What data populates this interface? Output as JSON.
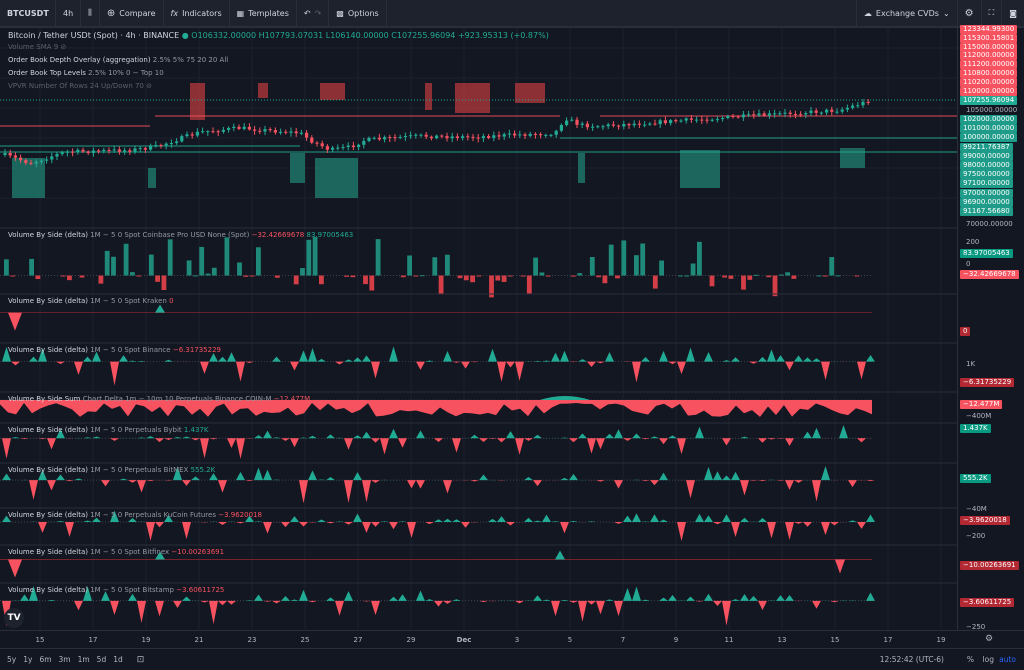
{
  "toolbar": {
    "symbol": "BTCUSDT",
    "interval": "4h",
    "compare": "Compare",
    "indicators": "Indicators",
    "templates": "Templates",
    "options": "Options",
    "layout": "Exchange CVDs"
  },
  "main": {
    "title": "Bitcoin / Tether USDt (Spot) · 4h · BINANCE",
    "open": "O106332.00000",
    "high": "H107793.07031",
    "low": "L106140.00000",
    "close": "C107255.96094",
    "change": "+923.95313 (+0.87%)",
    "studies": [
      {
        "name": "Volume SMA 9",
        "params": "",
        "hidden": true
      },
      {
        "name": "Order Book Depth Overlay (aggregation)",
        "params": "2.5% 5% 75 20 20 All",
        "hidden": false
      },
      {
        "name": "Order Book Top Levels",
        "params": "2.5% 10% 0 − Top 10",
        "hidden": false
      },
      {
        "name": "VPVR Number Of Rows 24 Up/Down 70",
        "params": "",
        "hidden": true
      }
    ],
    "ask_labels": [
      "123344.99300",
      "115300.15801",
      "115000.00000",
      "112000.00000",
      "111200.00000",
      "110800.00000",
      "110200.00000",
      "110000.00000"
    ],
    "last_price": "107255.96094",
    "axis_tick_105": "105000.00000",
    "bid_labels": [
      "102000.00000",
      "101000.00000",
      "100000.00000",
      "99211.76387",
      "99000.00000",
      "98000.00000",
      "97500.00000",
      "97100.00000",
      "97000.00000",
      "96900.00000",
      "91167.56680"
    ],
    "axis_tick_70": "70000.00000"
  },
  "panes": [
    {
      "title": "Volume By Side (delta)",
      "params": "1M − 5 0 Spot Coinbase Pro USD None (Spot)",
      "values": [
        {
          "v": "−32.42669678",
          "c": "red"
        },
        {
          "v": "83.97005463",
          "c": "grn"
        }
      ],
      "ticks": [
        "200",
        "0"
      ],
      "labels": [
        {
          "v": "83.97005463",
          "c": "#089981"
        },
        {
          "v": "−32.42669678",
          "c": "#f7525f"
        }
      ]
    },
    {
      "title": "Volume By Side (delta)",
      "params": "1M − 5 0 Spot Kraken",
      "values": [
        {
          "v": "0",
          "c": "red"
        }
      ],
      "ticks": [],
      "labels": [
        {
          "v": "0",
          "c": "#b22833"
        }
      ]
    },
    {
      "title": "Volume By Side (delta)",
      "params": "1M − 5 0 Spot Binance",
      "values": [
        {
          "v": "−6.31735229",
          "c": "red"
        }
      ],
      "ticks": [
        "1K"
      ],
      "labels": [
        {
          "v": "−6.31735229",
          "c": "#b22833"
        }
      ]
    },
    {
      "title": "Volume By Side Sum",
      "params": "Chart Delta 1m − 10m 10 Perpetuals Binance COIN-M",
      "values": [
        {
          "v": "−12.477M",
          "c": "red"
        }
      ],
      "ticks": [
        "−400M"
      ],
      "labels": [
        {
          "v": "−12.477M",
          "c": "#f7525f"
        }
      ]
    },
    {
      "title": "Volume By Side (delta)",
      "params": "1M − 5 0 Perpetuals Bybit",
      "values": [
        {
          "v": "1.437K",
          "c": "grn"
        }
      ],
      "ticks": [],
      "labels": [
        {
          "v": "1.437K",
          "c": "#089981"
        }
      ]
    },
    {
      "title": "Volume By Side (delta)",
      "params": "1M − 5 0 Perpetuals BitMEX",
      "values": [
        {
          "v": "555.2K",
          "c": "grn"
        }
      ],
      "ticks": [
        "−40M"
      ],
      "labels": [
        {
          "v": "555.2K",
          "c": "#089981"
        }
      ]
    },
    {
      "title": "Volume By Side (delta)",
      "params": "1M − 5 0 Perpetuals KuCoin Futures",
      "values": [
        {
          "v": "−3.9620018",
          "c": "red"
        }
      ],
      "ticks": [
        "−200"
      ],
      "labels": [
        {
          "v": "−3.9620018",
          "c": "#b22833"
        }
      ]
    },
    {
      "title": "Volume By Side (delta)",
      "params": "1M − 5 0 Spot Bitfinex",
      "values": [
        {
          "v": "−10.00263691",
          "c": "red"
        }
      ],
      "ticks": [],
      "labels": [
        {
          "v": "−10.00263691",
          "c": "#b22833"
        }
      ]
    },
    {
      "title": "Volume By Side (delta)",
      "params": "1M − 5 0 Spot Bitstamp",
      "values": [
        {
          "v": "−3.60611725",
          "c": "red"
        }
      ],
      "ticks": [
        "−250"
      ],
      "labels": [
        {
          "v": "−3.60611725",
          "c": "#b22833"
        }
      ]
    }
  ],
  "time_axis": [
    "15",
    "17",
    "19",
    "21",
    "23",
    "25",
    "27",
    "29",
    "Dec",
    "3",
    "5",
    "7",
    "9",
    "11",
    "13",
    "15",
    "17",
    "19"
  ],
  "bottom": {
    "ranges": [
      "5y",
      "1y",
      "6m",
      "3m",
      "1m",
      "5d",
      "1d"
    ],
    "clock": "12:52:42 (UTC-6)",
    "percent": "%",
    "log": "log",
    "auto": "auto"
  },
  "colors": {
    "up": "#22ab94",
    "down": "#f7525f",
    "bg": "#131722",
    "accent": "#2962ff"
  }
}
